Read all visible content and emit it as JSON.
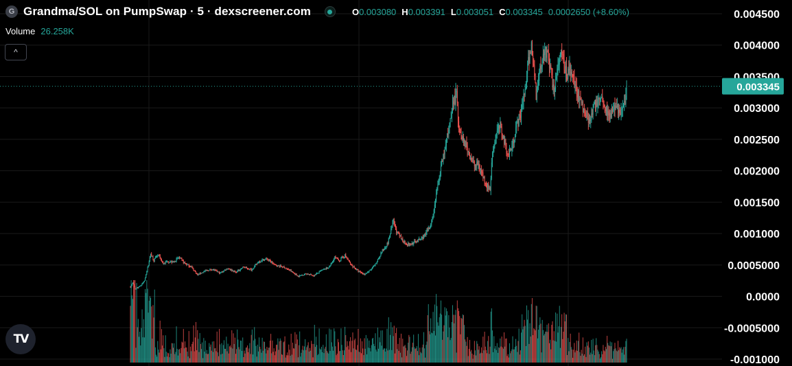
{
  "header": {
    "logo_letter": "G",
    "title": "Grandma/SOL on PumpSwap · 5 · dexscreener.com",
    "ohlc": {
      "o_label": "O",
      "o_value": "0.003080",
      "h_label": "H",
      "h_value": "0.003391",
      "l_label": "L",
      "l_value": "0.003051",
      "c_label": "C",
      "c_value": "0.003345",
      "change": "0.0002650 (+8.60%)"
    }
  },
  "volume": {
    "label": "Volume",
    "value": "26.258K"
  },
  "collapse_button": {
    "glyph": "^"
  },
  "tv_logo": {
    "text": "TV"
  },
  "colors": {
    "up": "#26a69a",
    "down": "#ef5350",
    "grid": "#1a1a1a",
    "background": "#000000"
  },
  "chart_data": {
    "type": "candlestick",
    "y_axis_ticks": [
      "0.004500",
      "0.004000",
      "0.003500",
      "0.003000",
      "0.002500",
      "0.002000",
      "0.001500",
      "0.001000",
      "0.0005000",
      "0.0000",
      "-0.0005000",
      "-0.001000"
    ],
    "ylim": [
      -0.00105,
      0.0046
    ],
    "last_price_label": "0.003345",
    "last_price": 0.003345,
    "price_path": [
      [
        0,
        0.00015
      ],
      [
        3,
        0.00021
      ],
      [
        6,
        0.00012
      ],
      [
        10,
        0.00015
      ],
      [
        14,
        0.00018
      ],
      [
        18,
        0.00025
      ],
      [
        22,
        0.00045
      ],
      [
        26,
        0.00068
      ],
      [
        30,
        0.00058
      ],
      [
        36,
        0.00066
      ],
      [
        42,
        0.00052
      ],
      [
        48,
        0.00056
      ],
      [
        55,
        0.00054
      ],
      [
        62,
        0.00062
      ],
      [
        70,
        0.00052
      ],
      [
        78,
        0.00047
      ],
      [
        86,
        0.00034
      ],
      [
        95,
        0.0004
      ],
      [
        105,
        0.00043
      ],
      [
        115,
        0.00037
      ],
      [
        125,
        0.00045
      ],
      [
        135,
        0.00038
      ],
      [
        145,
        0.00047
      ],
      [
        155,
        0.00042
      ],
      [
        165,
        0.00056
      ],
      [
        175,
        0.0006
      ],
      [
        185,
        0.0005
      ],
      [
        195,
        0.00047
      ],
      [
        205,
        0.00041
      ],
      [
        215,
        0.00032
      ],
      [
        225,
        0.00036
      ],
      [
        235,
        0.00033
      ],
      [
        245,
        0.00041
      ],
      [
        255,
        0.00047
      ],
      [
        262,
        0.00062
      ],
      [
        268,
        0.00057
      ],
      [
        275,
        0.00065
      ],
      [
        283,
        0.0005
      ],
      [
        292,
        0.0004
      ],
      [
        300,
        0.00035
      ],
      [
        308,
        0.00042
      ],
      [
        315,
        0.00052
      ],
      [
        322,
        0.00071
      ],
      [
        330,
        0.00085
      ],
      [
        337,
        0.0012
      ],
      [
        342,
        0.001
      ],
      [
        350,
        0.00088
      ],
      [
        357,
        0.00082
      ],
      [
        364,
        0.00086
      ],
      [
        371,
        0.0009
      ],
      [
        378,
        0.00098
      ],
      [
        383,
        0.0011
      ],
      [
        388,
        0.0013
      ],
      [
        393,
        0.0017
      ],
      [
        398,
        0.00205
      ],
      [
        403,
        0.00232
      ],
      [
        408,
        0.00268
      ],
      [
        413,
        0.00308
      ],
      [
        418,
        0.0032
      ],
      [
        421,
        0.0027
      ],
      [
        426,
        0.00252
      ],
      [
        431,
        0.00238
      ],
      [
        436,
        0.00222
      ],
      [
        441,
        0.00208
      ],
      [
        446,
        0.0021
      ],
      [
        451,
        0.00195
      ],
      [
        456,
        0.00178
      ],
      [
        461,
        0.0017
      ],
      [
        464,
        0.0023
      ],
      [
        469,
        0.0026
      ],
      [
        474,
        0.0027
      ],
      [
        479,
        0.00248
      ],
      [
        484,
        0.00225
      ],
      [
        489,
        0.00238
      ],
      [
        494,
        0.00268
      ],
      [
        499,
        0.00285
      ],
      [
        503,
        0.00305
      ],
      [
        507,
        0.0034
      ],
      [
        511,
        0.0038
      ],
      [
        514,
        0.004
      ],
      [
        517,
        0.00365
      ],
      [
        520,
        0.0032
      ],
      [
        523,
        0.0035
      ],
      [
        527,
        0.00375
      ],
      [
        531,
        0.00395
      ],
      [
        535,
        0.00385
      ],
      [
        539,
        0.00352
      ],
      [
        543,
        0.0033
      ],
      [
        547,
        0.00355
      ],
      [
        551,
        0.00385
      ],
      [
        555,
        0.00372
      ],
      [
        559,
        0.00352
      ],
      [
        563,
        0.00365
      ],
      [
        567,
        0.00345
      ],
      [
        572,
        0.0033
      ],
      [
        577,
        0.0031
      ],
      [
        582,
        0.00295
      ],
      [
        587,
        0.00283
      ],
      [
        591,
        0.0029
      ],
      [
        595,
        0.003
      ],
      [
        599,
        0.00315
      ],
      [
        603,
        0.0032
      ],
      [
        607,
        0.00308
      ],
      [
        611,
        0.00295
      ],
      [
        615,
        0.00288
      ],
      [
        619,
        0.00298
      ],
      [
        623,
        0.003
      ],
      [
        627,
        0.00294
      ],
      [
        631,
        0.003
      ],
      [
        634,
        0.00308
      ],
      [
        636,
        0.003345
      ]
    ]
  }
}
